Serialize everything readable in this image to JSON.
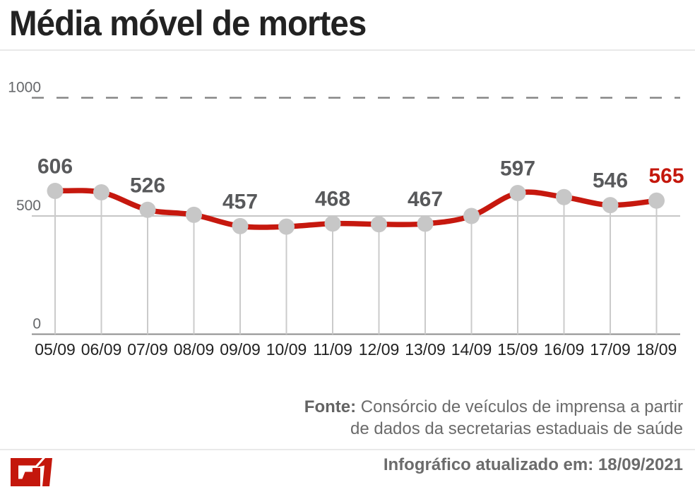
{
  "header": {
    "title": "Média móvel de mortes"
  },
  "chart_data": {
    "type": "line",
    "title": "Média móvel de mortes",
    "x": [
      "05/09",
      "06/09",
      "07/09",
      "08/09",
      "09/09",
      "10/09",
      "11/09",
      "12/09",
      "13/09",
      "14/09",
      "15/09",
      "16/09",
      "17/09",
      "18/09"
    ],
    "values": [
      606,
      600,
      526,
      505,
      457,
      455,
      468,
      465,
      467,
      500,
      597,
      580,
      546,
      565
    ],
    "point_labels": [
      "606",
      "",
      "526",
      "",
      "457",
      "",
      "468",
      "",
      "467",
      "",
      "597",
      "",
      "546",
      "565"
    ],
    "highlight_last_label": true,
    "ylim": [
      0,
      1000
    ],
    "yticks": [
      {
        "value": 1000,
        "label": "1000",
        "style": "dashed"
      },
      {
        "value": 500,
        "label": "500",
        "style": "solid"
      },
      {
        "value": 0,
        "label": "0",
        "style": "axis"
      }
    ],
    "grid": "horizontal",
    "legend": "none"
  },
  "footer": {
    "source_label": "Fonte:",
    "source_line1": "Consórcio de veículos de imprensa a partir",
    "source_line2": "de dados da secretarias estaduais de saúde",
    "updated": "Infográfico atualizado em: 18/09/2021",
    "logo_text": "G1"
  },
  "colors": {
    "accent_red": "#c4170c",
    "line_red": "#c6180e",
    "marker_gray": "#c7c7c7",
    "stem_gray": "#cbcbcb",
    "grid_solid": "#c6c6c6",
    "grid_dashed": "#858585",
    "axis_line": "#8e8e8e",
    "axis_tick_label": "#66686b",
    "x_tick_label": "#222222",
    "value_label": "#58595b",
    "title_text": "#222222",
    "footer_text": "#6b6b6b",
    "divider": "#e9e9e9"
  }
}
